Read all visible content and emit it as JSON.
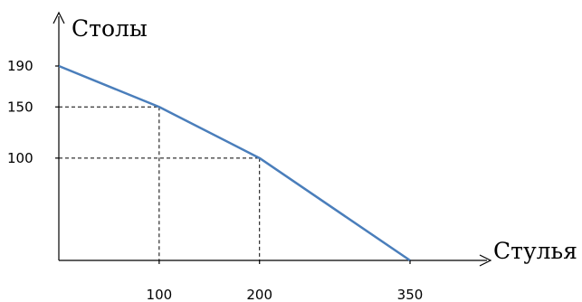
{
  "chart_data": {
    "type": "line",
    "xlabel": "Стулья",
    "ylabel": "Столы",
    "xlim": [
      0,
      350
    ],
    "ylim": [
      0,
      190
    ],
    "x_ticks": [
      {
        "value": 100,
        "label": "100"
      },
      {
        "value": 200,
        "label": "200"
      },
      {
        "value": 350,
        "label": "350"
      }
    ],
    "y_ticks": [
      {
        "value": 190,
        "label": "190"
      },
      {
        "value": 150,
        "label": "150"
      },
      {
        "value": 100,
        "label": "100"
      }
    ],
    "series": [
      {
        "points": [
          {
            "x": 0,
            "y": 190
          },
          {
            "x": 100,
            "y": 150
          },
          {
            "x": 200,
            "y": 100
          },
          {
            "x": 350,
            "y": 0
          }
        ]
      }
    ],
    "guides": [
      {
        "x": 100,
        "y": 150
      },
      {
        "x": 200,
        "y": 100
      }
    ],
    "colors": {
      "series": "#4a7ebb",
      "axis": "#000000"
    },
    "grid": false,
    "legend": "none"
  }
}
